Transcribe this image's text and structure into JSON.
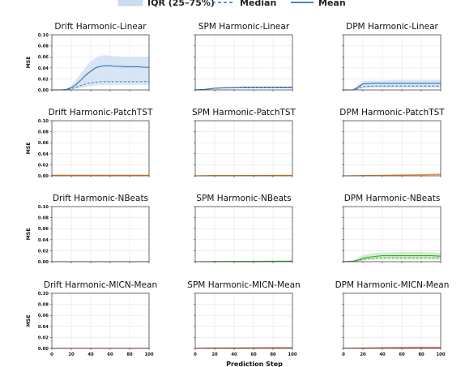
{
  "legend": {
    "iqr_label": "IQR (25–75%)",
    "median_label": "Median",
    "mean_label": "Mean"
  },
  "xlabel": "Prediction Step",
  "ylabel": "MSE",
  "colors": {
    "blue": "#2f72b6",
    "blue_fill": "#c9dcf0",
    "orange": "#f08a24",
    "orange_fill": "#fbd9b3",
    "green": "#3aa83a",
    "green_fill": "#c6e8c0",
    "red": "#d03b2b",
    "red_fill": "#f3c2bb"
  },
  "chart_data": [
    {
      "type": "line",
      "title": "Drift Harmonic-Linear",
      "color": "blue",
      "xlim": [
        0,
        100
      ],
      "ylim": [
        0,
        0.1
      ],
      "x": [
        0,
        10,
        15,
        20,
        25,
        30,
        35,
        40,
        45,
        50,
        55,
        60,
        65,
        70,
        75,
        80,
        85,
        90,
        95,
        100
      ],
      "mean": [
        0,
        0,
        0.001,
        0.004,
        0.01,
        0.018,
        0.027,
        0.034,
        0.04,
        0.043,
        0.044,
        0.044,
        0.043,
        0.043,
        0.042,
        0.042,
        0.042,
        0.042,
        0.041,
        0.041
      ],
      "median": [
        0,
        0,
        0.0005,
        0.002,
        0.005,
        0.008,
        0.011,
        0.013,
        0.014,
        0.015,
        0.015,
        0.015,
        0.015,
        0.015,
        0.015,
        0.015,
        0.015,
        0.015,
        0.015,
        0.015
      ],
      "q25": [
        0,
        0,
        0,
        0.001,
        0.002,
        0.004,
        0.006,
        0.007,
        0.008,
        0.009,
        0.009,
        0.009,
        0.009,
        0.009,
        0.009,
        0.009,
        0.009,
        0.009,
        0.009,
        0.009
      ],
      "q75": [
        0,
        0,
        0.002,
        0.008,
        0.018,
        0.03,
        0.042,
        0.052,
        0.058,
        0.062,
        0.063,
        0.062,
        0.061,
        0.061,
        0.06,
        0.06,
        0.06,
        0.06,
        0.06,
        0.06
      ]
    },
    {
      "type": "line",
      "title": "SPM Harmonic-Linear",
      "color": "blue",
      "xlim": [
        0,
        100
      ],
      "ylim": [
        0,
        0.1
      ],
      "x": [
        0,
        10,
        15,
        20,
        30,
        40,
        50,
        60,
        70,
        80,
        90,
        100
      ],
      "mean": [
        0,
        0.001,
        0.002,
        0.003,
        0.004,
        0.004,
        0.005,
        0.005,
        0.005,
        0.005,
        0.005,
        0.005
      ],
      "median": [
        0,
        0.001,
        0.002,
        0.003,
        0.004,
        0.004,
        0.004,
        0.004,
        0.004,
        0.004,
        0.004,
        0.004
      ],
      "q25": [
        0,
        0.0005,
        0.001,
        0.002,
        0.002,
        0.003,
        0.003,
        0.003,
        0.003,
        0.003,
        0.003,
        0.003
      ],
      "q75": [
        0,
        0.002,
        0.003,
        0.004,
        0.005,
        0.006,
        0.006,
        0.006,
        0.006,
        0.006,
        0.006,
        0.006
      ]
    },
    {
      "type": "line",
      "title": "DPM Harmonic-Linear",
      "color": "blue",
      "xlim": [
        0,
        100
      ],
      "ylim": [
        0,
        0.1
      ],
      "x": [
        0,
        10,
        15,
        20,
        30,
        40,
        50,
        60,
        70,
        80,
        90,
        100
      ],
      "mean": [
        0,
        0,
        0.005,
        0.011,
        0.012,
        0.012,
        0.012,
        0.012,
        0.012,
        0.012,
        0.012,
        0.012
      ],
      "median": [
        0,
        0,
        0.003,
        0.006,
        0.007,
        0.007,
        0.007,
        0.007,
        0.007,
        0.007,
        0.007,
        0.007
      ],
      "q25": [
        0,
        0,
        0.001,
        0.003,
        0.004,
        0.004,
        0.004,
        0.004,
        0.004,
        0.004,
        0.004,
        0.004
      ],
      "q75": [
        0,
        0,
        0.01,
        0.016,
        0.017,
        0.017,
        0.018,
        0.018,
        0.018,
        0.018,
        0.018,
        0.018
      ]
    },
    {
      "type": "line",
      "title": "Drift Harmonic-PatchTST",
      "color": "orange",
      "xlim": [
        0,
        100
      ],
      "ylim": [
        0,
        0.1
      ],
      "x": [
        0,
        20,
        40,
        60,
        80,
        100
      ],
      "mean": [
        0.001,
        0.001,
        0.001,
        0.001,
        0.001,
        0.001
      ],
      "median": [
        0.001,
        0.001,
        0.001,
        0.001,
        0.001,
        0.001
      ],
      "q25": [
        0.0005,
        0.0005,
        0.0005,
        0.0005,
        0.0005,
        0.0005
      ],
      "q75": [
        0.002,
        0.002,
        0.002,
        0.002,
        0.002,
        0.002
      ]
    },
    {
      "type": "line",
      "title": "SPM Harmonic-PatchTST",
      "color": "orange",
      "xlim": [
        0,
        100
      ],
      "ylim": [
        0,
        0.1
      ],
      "x": [
        0,
        20,
        40,
        60,
        80,
        100
      ],
      "mean": [
        0,
        0.0005,
        0.0005,
        0.0007,
        0.0008,
        0.001
      ],
      "median": [
        0,
        0.0005,
        0.0005,
        0.0006,
        0.0007,
        0.0008
      ],
      "q25": [
        0,
        0.0002,
        0.0002,
        0.0003,
        0.0003,
        0.0003
      ],
      "q75": [
        0,
        0.001,
        0.001,
        0.0012,
        0.0013,
        0.0015
      ]
    },
    {
      "type": "line",
      "title": "DPM Harmonic-PatchTST",
      "color": "orange",
      "xlim": [
        0,
        100
      ],
      "ylim": [
        0,
        0.1
      ],
      "x": [
        0,
        20,
        40,
        60,
        80,
        100
      ],
      "mean": [
        0,
        0.0005,
        0.001,
        0.0015,
        0.002,
        0.003
      ],
      "median": [
        0,
        0.0004,
        0.0008,
        0.0012,
        0.0016,
        0.0022
      ],
      "q25": [
        0,
        0.0002,
        0.0004,
        0.0006,
        0.0008,
        0.001
      ],
      "q75": [
        0,
        0.001,
        0.0016,
        0.0024,
        0.003,
        0.004
      ]
    },
    {
      "type": "line",
      "title": "Drift Harmonic-NBeats",
      "color": "green",
      "xlim": [
        0,
        100
      ],
      "ylim": [
        0,
        0.1
      ],
      "x": [
        0,
        20,
        40,
        60,
        80,
        100
      ],
      "mean": [
        0,
        0,
        0,
        0,
        0,
        0
      ],
      "median": [
        0,
        0,
        0,
        0,
        0,
        0
      ],
      "q25": [
        0,
        0,
        0,
        0,
        0,
        0
      ],
      "q75": [
        0,
        0,
        0,
        0,
        0,
        0
      ]
    },
    {
      "type": "line",
      "title": "SPM Harmonic-NBeats",
      "color": "green",
      "xlim": [
        0,
        100
      ],
      "ylim": [
        0,
        0.1
      ],
      "x": [
        0,
        20,
        40,
        60,
        80,
        100
      ],
      "mean": [
        0,
        0.0003,
        0.0005,
        0.0007,
        0.0008,
        0.001
      ],
      "median": [
        0,
        0.0002,
        0.0004,
        0.0005,
        0.0006,
        0.0007
      ],
      "q25": [
        0,
        0.0001,
        0.0002,
        0.0003,
        0.0003,
        0.0003
      ],
      "q75": [
        0,
        0.0005,
        0.0008,
        0.001,
        0.0012,
        0.0014
      ]
    },
    {
      "type": "line",
      "title": "DPM Harmonic-NBeats",
      "color": "green",
      "xlim": [
        0,
        100
      ],
      "ylim": [
        0,
        0.1
      ],
      "x": [
        0,
        10,
        15,
        20,
        25,
        30,
        35,
        40,
        50,
        60,
        70,
        80,
        90,
        100
      ],
      "mean": [
        0,
        0.001,
        0.003,
        0.006,
        0.008,
        0.009,
        0.01,
        0.011,
        0.011,
        0.011,
        0.011,
        0.011,
        0.011,
        0.01
      ],
      "median": [
        0,
        0.0005,
        0.002,
        0.004,
        0.005,
        0.006,
        0.007,
        0.007,
        0.007,
        0.007,
        0.007,
        0.007,
        0.007,
        0.007
      ],
      "q25": [
        0,
        0,
        0.001,
        0.002,
        0.003,
        0.003,
        0.004,
        0.004,
        0.004,
        0.004,
        0.004,
        0.004,
        0.004,
        0.004
      ],
      "q75": [
        0,
        0.002,
        0.007,
        0.012,
        0.014,
        0.015,
        0.016,
        0.017,
        0.017,
        0.018,
        0.018,
        0.018,
        0.017,
        0.016
      ]
    },
    {
      "type": "line",
      "title": "Drift Harmonic-MICN-Mean",
      "color": "red",
      "xlim": [
        0,
        100
      ],
      "ylim": [
        0,
        0.1
      ],
      "x": [
        0,
        20,
        40,
        60,
        80,
        100
      ],
      "mean": [
        0,
        0,
        0,
        0,
        0,
        0
      ],
      "median": [
        0,
        0,
        0,
        0,
        0,
        0
      ],
      "q25": [
        0,
        0,
        0,
        0,
        0,
        0
      ],
      "q75": [
        0,
        0,
        0,
        0,
        0,
        0
      ]
    },
    {
      "type": "line",
      "title": "SPM Harmonic-MICN-Mean",
      "color": "red",
      "xlim": [
        0,
        100
      ],
      "ylim": [
        0,
        0.1
      ],
      "x": [
        0,
        20,
        40,
        60,
        80,
        100
      ],
      "mean": [
        0,
        0.0005,
        0.0007,
        0.0009,
        0.001,
        0.001
      ],
      "median": [
        0,
        0.0004,
        0.0006,
        0.0007,
        0.0008,
        0.0008
      ],
      "q25": [
        0,
        0.0002,
        0.0003,
        0.0003,
        0.0004,
        0.0004
      ],
      "q75": [
        0,
        0.0008,
        0.001,
        0.0012,
        0.0013,
        0.0013
      ]
    },
    {
      "type": "line",
      "title": "DPM Harmonic-MICN-Mean",
      "color": "red",
      "xlim": [
        0,
        100
      ],
      "ylim": [
        0,
        0.1
      ],
      "x": [
        0,
        20,
        40,
        60,
        80,
        100
      ],
      "mean": [
        0,
        0.0005,
        0.001,
        0.0013,
        0.0015,
        0.0016
      ],
      "median": [
        0,
        0.0004,
        0.0008,
        0.001,
        0.0012,
        0.0013
      ],
      "q25": [
        0,
        0.0002,
        0.0004,
        0.0005,
        0.0006,
        0.0006
      ],
      "q75": [
        0,
        0.0009,
        0.0015,
        0.0019,
        0.0022,
        0.0023
      ]
    }
  ],
  "yticks": [
    "0.00",
    "0.02",
    "0.04",
    "0.06",
    "0.08",
    "0.10"
  ],
  "xticks": [
    "0",
    "20",
    "40",
    "60",
    "80",
    "100"
  ]
}
